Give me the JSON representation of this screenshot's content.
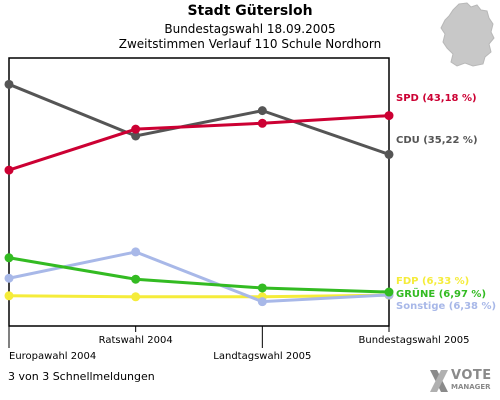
{
  "header": {
    "title": "Stadt Gütersloh",
    "subtitle1": "Bundestagswahl 18.09.2005",
    "subtitle2": "Zweitstimmen Verlauf 110 Schule Nordhorn"
  },
  "footer": {
    "note": "3 von 3 Schnellmeldungen",
    "brand_name": "VOTE",
    "brand_sub": "MANAGER"
  },
  "chart_data": {
    "type": "line",
    "categories": [
      "Europawahl 2004",
      "Ratswahl 2004",
      "Landtagswahl 2005",
      "Bundestagswahl 2005"
    ],
    "ylim": [
      0,
      55
    ],
    "grid": false,
    "series": [
      {
        "name": "SPD",
        "label": "SPD (43,18 %)",
        "color": "#cc0033",
        "values": [
          32.0,
          40.4,
          41.6,
          43.18
        ]
      },
      {
        "name": "CDU",
        "label": "CDU (35,22 %)",
        "color": "#555555",
        "values": [
          49.6,
          39.0,
          44.2,
          35.22
        ]
      },
      {
        "name": "FDP",
        "label": "FDP (6,33 %)",
        "color": "#f5ec3a",
        "values": [
          6.2,
          6.0,
          6.0,
          6.33
        ]
      },
      {
        "name": "GRÜNE",
        "label": "GRÜNE (6,97 %)",
        "color": "#33bb22",
        "values": [
          14.0,
          9.6,
          7.8,
          6.97
        ]
      },
      {
        "name": "Sonstige",
        "label": "Sonstige (6,38 %)",
        "color": "#a8b8e8",
        "values": [
          9.8,
          15.2,
          5.0,
          6.38
        ]
      }
    ]
  },
  "colors": {
    "map": "#c8c8c8",
    "brand_grey": "#8a8a8a"
  }
}
